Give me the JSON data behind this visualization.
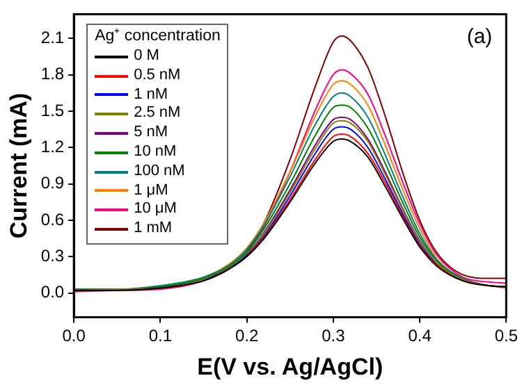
{
  "chart_data": {
    "type": "line",
    "xlabel": "E(V vs. Ag/AgCl)",
    "ylabel": "Current (mA)",
    "legend_title": "Ag⁺ concentration",
    "legend": "top left",
    "grid": false,
    "marker": "none",
    "line_style": "solid",
    "xlim": [
      0,
      0.5
    ],
    "xticks": [
      {
        "value": 0,
        "label": "0.0"
      },
      0.1,
      0.2,
      0.3,
      0.4,
      0.5
    ],
    "ylim": [
      -0.2,
      2.3
    ],
    "yticks": [
      {
        "value": 0,
        "label": "0.0"
      },
      0.3,
      0.6,
      0.9,
      1.2,
      1.5,
      1.8,
      2.1
    ],
    "annotations": [
      "(a)"
    ],
    "x": [
      0,
      0.05,
      0.1,
      0.15,
      0.18,
      0.2,
      0.22,
      0.25,
      0.28,
      0.3,
      0.31,
      0.32,
      0.34,
      0.36,
      0.38,
      0.4,
      0.42,
      0.45,
      0.48,
      0.5
    ],
    "series": [
      {
        "name": "0 M",
        "color": "#000000",
        "values": [
          0.02,
          0.02,
          0.04,
          0.1,
          0.2,
          0.3,
          0.45,
          0.75,
          1.08,
          1.25,
          1.27,
          1.25,
          1.12,
          0.88,
          0.62,
          0.38,
          0.22,
          0.1,
          0.06,
          0.05
        ]
      },
      {
        "name": "0.5 nM",
        "color": "#ff0000",
        "values": [
          null,
          null,
          null,
          null,
          null,
          0.3,
          0.46,
          0.77,
          1.11,
          1.29,
          1.31,
          1.29,
          1.15,
          0.91,
          0.64,
          0.39,
          0.23,
          0.1,
          0.06,
          0.05
        ]
      },
      {
        "name": "1 nM",
        "color": "#0000ff",
        "values": [
          null,
          null,
          null,
          0.1,
          0.2,
          0.31,
          0.47,
          0.8,
          1.16,
          1.35,
          1.37,
          1.35,
          1.2,
          0.94,
          0.66,
          0.4,
          0.23,
          null,
          null,
          null
        ]
      },
      {
        "name": "2.5 nM",
        "color": "#808000",
        "values": [
          0.02,
          0.03,
          0.04,
          0.11,
          0.21,
          0.32,
          0.49,
          0.83,
          1.2,
          1.4,
          1.42,
          1.4,
          1.25,
          0.98,
          0.69,
          0.42,
          0.24,
          0.11,
          0.06,
          0.05
        ]
      },
      {
        "name": "5 nM",
        "color": "#800080",
        "values": [
          0.02,
          0.03,
          0.04,
          0.11,
          0.21,
          0.32,
          0.5,
          0.85,
          1.23,
          1.43,
          1.45,
          1.43,
          1.27,
          1.0,
          0.7,
          0.43,
          0.24,
          0.11,
          0.06,
          0.05
        ]
      },
      {
        "name": "10 nM",
        "color": "#008000",
        "values": [
          0.03,
          0.03,
          0.05,
          0.12,
          0.22,
          0.34,
          0.53,
          0.9,
          1.31,
          1.53,
          1.55,
          1.53,
          1.36,
          1.07,
          0.75,
          0.46,
          0.26,
          0.11,
          0.06,
          0.05
        ]
      },
      {
        "name": "100 nM",
        "color": "#008080",
        "values": [
          0.03,
          0.03,
          0.06,
          0.13,
          0.23,
          0.36,
          0.56,
          0.96,
          1.4,
          1.62,
          1.65,
          1.62,
          1.45,
          1.14,
          0.8,
          0.49,
          0.27,
          0.12,
          0.06,
          0.05
        ]
      },
      {
        "name": "1 μM",
        "color": "#ff8000",
        "values": [
          null,
          null,
          0.05,
          0.13,
          0.24,
          0.37,
          0.58,
          1.0,
          1.47,
          1.72,
          1.75,
          1.72,
          1.55,
          1.22,
          0.86,
          0.53,
          0.28,
          0.12,
          0.06,
          0.04
        ]
      },
      {
        "name": "10 μM",
        "color": "#ff0080",
        "values": [
          0.01,
          0.02,
          0.03,
          0.1,
          0.2,
          0.33,
          0.55,
          1.0,
          1.52,
          1.8,
          1.84,
          1.81,
          1.64,
          1.3,
          0.92,
          0.57,
          0.31,
          0.13,
          0.09,
          0.08
        ]
      },
      {
        "name": "1 mM",
        "color": "#800000",
        "values": [
          null,
          null,
          0.04,
          0.11,
          0.21,
          0.34,
          0.58,
          1.1,
          1.72,
          2.07,
          2.12,
          2.08,
          1.86,
          1.46,
          1.0,
          0.6,
          0.33,
          0.15,
          0.12,
          0.12
        ]
      }
    ]
  }
}
